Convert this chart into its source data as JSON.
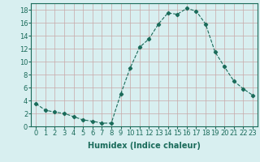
{
  "x": [
    0,
    1,
    2,
    3,
    4,
    5,
    6,
    7,
    8,
    9,
    10,
    11,
    12,
    13,
    14,
    15,
    16,
    17,
    18,
    19,
    20,
    21,
    22,
    23
  ],
  "y": [
    3.5,
    2.5,
    2.2,
    2.0,
    1.5,
    1.0,
    0.8,
    0.5,
    0.5,
    5.0,
    9.0,
    12.2,
    13.5,
    15.8,
    17.5,
    17.3,
    18.2,
    17.8,
    15.8,
    11.5,
    9.2,
    7.0,
    5.8,
    4.8
  ],
  "line_color": "#1a6b5a",
  "marker": "D",
  "marker_size": 2.2,
  "bg_color": "#d8eff0",
  "grid_color": "#c8a8a8",
  "xlabel": "Humidex (Indice chaleur)",
  "xlim": [
    -0.5,
    23.5
  ],
  "ylim": [
    0,
    19
  ],
  "yticks": [
    0,
    2,
    4,
    6,
    8,
    10,
    12,
    14,
    16,
    18
  ],
  "xticks": [
    0,
    1,
    2,
    3,
    4,
    5,
    6,
    7,
    8,
    9,
    10,
    11,
    12,
    13,
    14,
    15,
    16,
    17,
    18,
    19,
    20,
    21,
    22,
    23
  ],
  "xtick_labels": [
    "0",
    "1",
    "2",
    "3",
    "4",
    "5",
    "6",
    "7",
    "8",
    "9",
    "10",
    "11",
    "12",
    "13",
    "14",
    "15",
    "16",
    "17",
    "18",
    "19",
    "20",
    "21",
    "22",
    "23"
  ],
  "tick_fontsize": 6,
  "xlabel_fontsize": 7
}
